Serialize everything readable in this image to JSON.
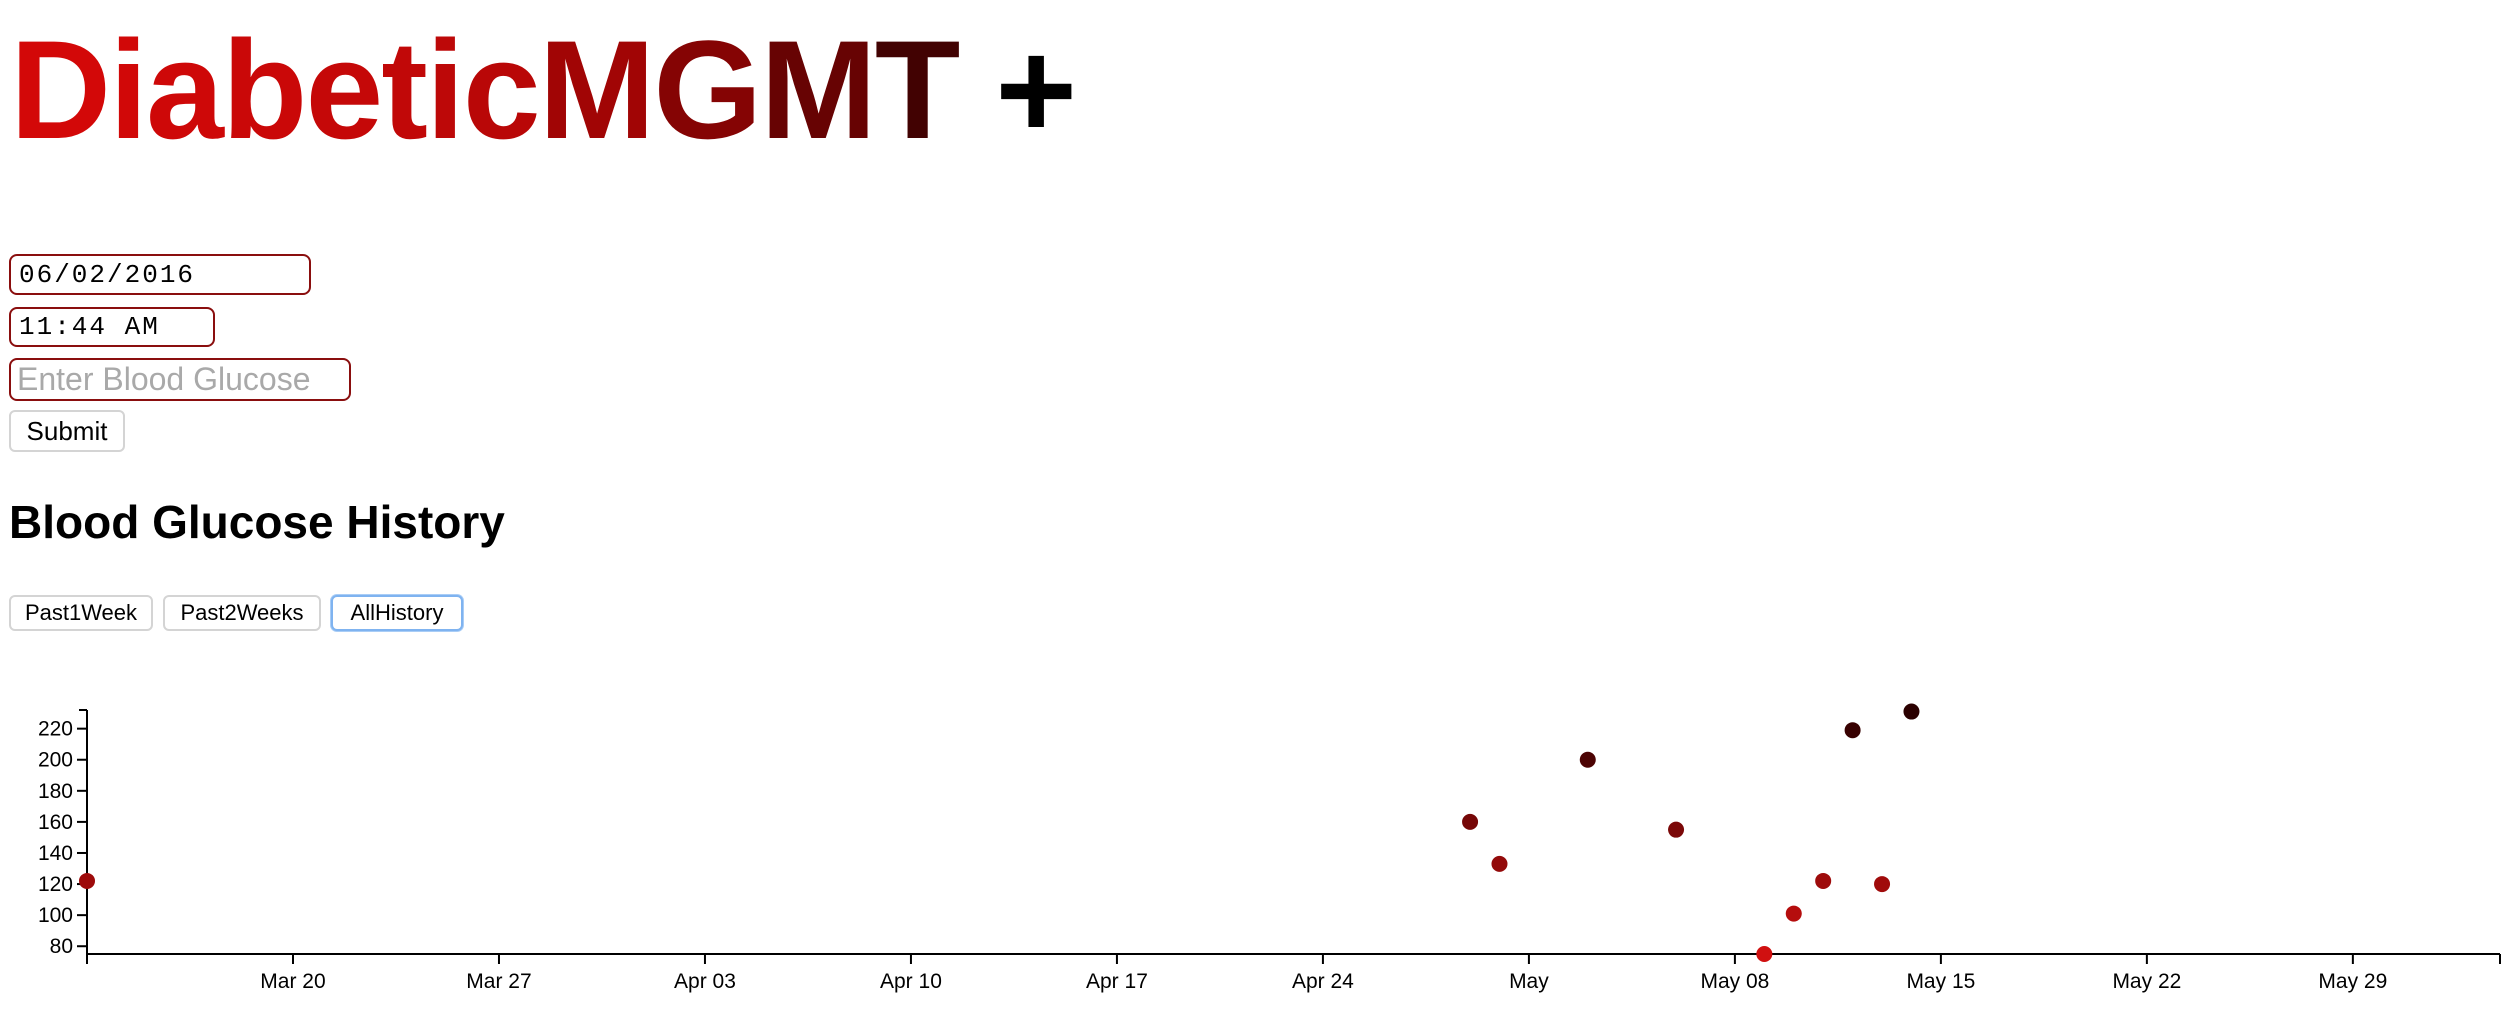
{
  "header": {
    "title_parts": [
      {
        "text": "D",
        "color": "#d30808"
      },
      {
        "text": "i",
        "color": "#d10808"
      },
      {
        "text": "a",
        "color": "#ce0808"
      },
      {
        "text": "b",
        "color": "#ca0808"
      },
      {
        "text": "e",
        "color": "#c50808"
      },
      {
        "text": "t",
        "color": "#c10808"
      },
      {
        "text": "i",
        "color": "#bd0808"
      },
      {
        "text": "c",
        "color": "#b90707"
      },
      {
        "text": "M",
        "color": "#a10505"
      },
      {
        "text": "G",
        "color": "#850404"
      },
      {
        "text": "M",
        "color": "#670303"
      },
      {
        "text": "T",
        "color": "#420202"
      }
    ],
    "title_plus": "+"
  },
  "form": {
    "date_value": "06/02/2016",
    "time_value": "11:44 AM",
    "glucose_placeholder": "Enter Blood Glucose",
    "submit_label": "Submit"
  },
  "history": {
    "title": "Blood Glucose History",
    "range_buttons": [
      "Past1Week",
      "Past2Weeks",
      "AllHistory"
    ],
    "selected_range": "AllHistory"
  },
  "chart_data": {
    "type": "scatter",
    "title": "",
    "xlabel": "",
    "ylabel": "",
    "xlim": [
      "2016-03-13",
      "2016-06-03"
    ],
    "ylim": [
      75,
      232
    ],
    "x_tick_labels": [
      "Mar 20",
      "Mar 27",
      "Apr 03",
      "Apr 10",
      "Apr 17",
      "Apr 24",
      "May",
      "May 08",
      "May 15",
      "May 22",
      "May 29"
    ],
    "x_tick_dates": [
      "2016-03-20",
      "2016-03-27",
      "2016-04-03",
      "2016-04-10",
      "2016-04-17",
      "2016-04-24",
      "2016-05-01",
      "2016-05-08",
      "2016-05-15",
      "2016-05-22",
      "2016-05-29"
    ],
    "y_ticks": [
      80,
      100,
      120,
      140,
      160,
      180,
      200,
      220
    ],
    "color_low": "#d01010",
    "color_high": "#2a0000",
    "grid": false,
    "points": [
      {
        "x": "2016-03-13",
        "y": 122
      },
      {
        "x": "2016-04-29",
        "y": 160
      },
      {
        "x": "2016-04-30",
        "y": 133
      },
      {
        "x": "2016-05-03",
        "y": 200
      },
      {
        "x": "2016-05-06",
        "y": 155
      },
      {
        "x": "2016-05-09",
        "y": 75
      },
      {
        "x": "2016-05-10",
        "y": 101
      },
      {
        "x": "2016-05-11",
        "y": 122
      },
      {
        "x": "2016-05-12",
        "y": 219
      },
      {
        "x": "2016-05-13",
        "y": 120
      },
      {
        "x": "2016-05-14",
        "y": 231
      }
    ]
  }
}
